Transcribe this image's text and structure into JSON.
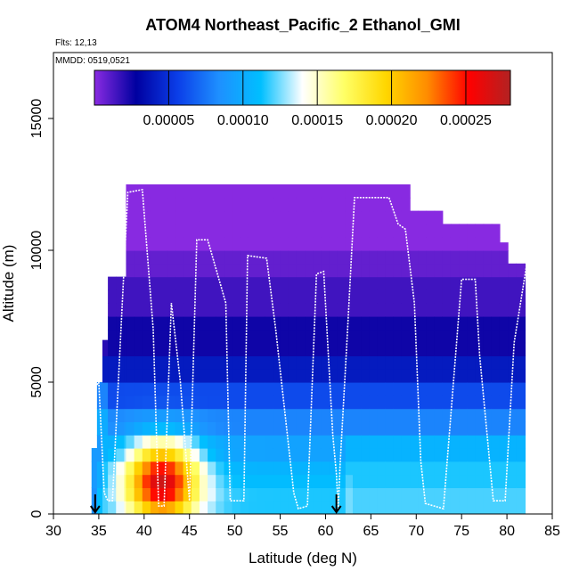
{
  "chart_data": {
    "type": "heatmap",
    "title": "ATOM4 Northeast_Pacific_2 Ethanol_GMI",
    "flights_label": "Flts: 12,13",
    "dates_label": "MMDD: 0519,0521",
    "xlabel": "Latitude (deg N)",
    "ylabel": "Altitude (m)",
    "xlim": [
      30,
      85
    ],
    "ylim": [
      0,
      17500
    ],
    "x_ticks": [
      "30",
      "35",
      "40",
      "45",
      "50",
      "55",
      "60",
      "65",
      "70",
      "75",
      "80",
      "85"
    ],
    "y_ticks": [
      "0",
      "5000",
      "10000",
      "15000"
    ],
    "colorbar": {
      "range": [
        0,
        0.00028
      ],
      "tick_values": [
        5e-05,
        0.0001,
        0.00015,
        0.0002,
        0.00025
      ],
      "tick_labels": [
        "0.00005",
        "0.00010",
        "0.00015",
        "0.00020",
        "0.00025"
      ],
      "colors": [
        "#8a2be2",
        "#0000a0",
        "#0b3ee8",
        "#1e90ff",
        "#00bfff",
        "#ffffff",
        "#ffff66",
        "#ffd700",
        "#ff8c00",
        "#ff0000",
        "#b22222"
      ]
    },
    "curtain": {
      "value_note": "ethanol mixing ratio",
      "columns": [
        {
          "lat": [
            34.2,
            34.8
          ],
          "top": 2500,
          "cells": [
            [
              0,
              8.5e-05
            ],
            [
              1000,
              9e-05
            ],
            [
              2000,
              9e-05
            ]
          ]
        },
        {
          "lat": [
            34.8,
            35.4
          ],
          "top": 5000,
          "cells": [
            [
              0,
              0.00011
            ],
            [
              1000,
              0.0001
            ],
            [
              2000,
              9e-05
            ],
            [
              3000,
              0.0001
            ],
            [
              4000,
              8e-05
            ]
          ]
        },
        {
          "lat": [
            35.4,
            36.0
          ],
          "top": 6600,
          "cells": [
            [
              0,
              0.00012
            ],
            [
              1000,
              0.000115
            ],
            [
              2000,
              0.000105
            ],
            [
              3000,
              0.0001
            ],
            [
              4000,
              8e-05
            ],
            [
              5000,
              4e-05
            ],
            [
              6000,
              2e-05
            ]
          ]
        }
      ],
      "profiles": [
        {
          "lat_min": 36.0,
          "lat_max": 38.0,
          "top": 9000
        },
        {
          "lat_min": 38.0,
          "lat_max": 55.0,
          "top": 12500
        },
        {
          "lat_min": 55.0,
          "lat_max": 63.0,
          "top": 12500
        },
        {
          "lat_min": 63.0,
          "lat_max": 82.0,
          "top": 12500
        }
      ],
      "hotspot": {
        "lat_center": 42.0,
        "alt_center": 1200,
        "peak": 0.00027
      }
    },
    "flight_track": [
      [
        34.8,
        4900
      ],
      [
        35.0,
        5000
      ],
      [
        35.6,
        800
      ],
      [
        36.0,
        500
      ],
      [
        36.5,
        500
      ],
      [
        38.2,
        12200
      ],
      [
        39.8,
        12300
      ],
      [
        41.0,
        7000
      ],
      [
        41.6,
        300
      ],
      [
        42.2,
        300
      ],
      [
        43.0,
        8000
      ],
      [
        44.0,
        5000
      ],
      [
        45.0,
        500
      ],
      [
        45.8,
        10400
      ],
      [
        47.0,
        10400
      ],
      [
        49.0,
        8000
      ],
      [
        49.5,
        500
      ],
      [
        51.0,
        500
      ],
      [
        51.4,
        9800
      ],
      [
        53.5,
        9700
      ],
      [
        54.5,
        7000
      ],
      [
        56.5,
        800
      ],
      [
        57.0,
        200
      ],
      [
        58.0,
        300
      ],
      [
        59.0,
        9100
      ],
      [
        59.8,
        9200
      ],
      [
        60.8,
        3000
      ],
      [
        61.2,
        1500
      ],
      [
        61.4,
        200
      ],
      [
        61.6,
        1800
      ],
      [
        62.4,
        6800
      ],
      [
        63.2,
        12000
      ],
      [
        67.0,
        12000
      ],
      [
        68.0,
        11000
      ],
      [
        68.8,
        10800
      ],
      [
        69.8,
        8000
      ],
      [
        70.5,
        2000
      ],
      [
        71.0,
        400
      ],
      [
        73.0,
        200
      ],
      [
        75.0,
        8900
      ],
      [
        76.5,
        8900
      ],
      [
        77.0,
        6000
      ],
      [
        78.5,
        500
      ],
      [
        79.8,
        500
      ],
      [
        80.8,
        6500
      ],
      [
        82.2,
        9500
      ]
    ],
    "markers": [
      {
        "lat": 34.6,
        "alt": 0,
        "symbol": "arrow-down"
      },
      {
        "lat": 61.2,
        "alt": 0,
        "symbol": "arrow-down"
      }
    ]
  }
}
